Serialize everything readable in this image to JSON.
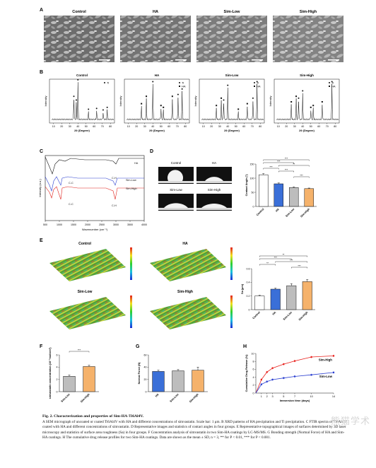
{
  "figure": {
    "caption_title": "Fig. 2. Characterization and properties of Sim-HA-Ti6Al4V.",
    "caption_body": "A SEM micrograph of uncoated or coated Ti6Al4V with HA and different concentrations of simvastatin. Scale bar: 1 μm. B XRD patterns of HA precipitation and Ti precipitation. C FTIR spectra of Ti6Al4V coated with HA and different concentrations of simvastatin. D Representative images and statistics of contact angles in four groups. E Representative topographical images of surfaces determined by 3D laser microscopy and statistics of surface area roughness (Sa) in four groups. F Concentration analysis of simvastatin in two Sim-HA coatings by LC-MS/MS. G Bonding strength (Normal Force) of HA and Sim-HA coatings. H The cumulative drug release profiles for two Sim-HA coatings. Data are shown as the mean ± SD, n = 3, ** for P < 0.01, *** for P < 0.001.",
    "watermark": "熊猫学术"
  },
  "panels": {
    "A": {
      "letter": "A",
      "titles": [
        "Control",
        "HA",
        "Sim-Low",
        "Sim-High"
      ]
    },
    "B": {
      "letter": "B",
      "titles": [
        "Control",
        "HA",
        "Sim-Low",
        "Sim-High"
      ],
      "ylabel": "Intensity",
      "xlabel": "2θ (Degree)",
      "xticks": [
        "10",
        "20",
        "30",
        "40",
        "50",
        "60",
        "70",
        "80"
      ],
      "legend_ti": "Ti",
      "legend_ha": "HA"
    },
    "C": {
      "letter": "C",
      "ylabel": "Intensity (a.u.)",
      "xlabel": "Wavenumber (cm⁻¹)",
      "xticks": [
        "500",
        "1000",
        "1500",
        "2000",
        "2500",
        "3000",
        "3500",
        "4000"
      ],
      "labels": {
        "ha": "HA",
        "low": "Sim-Low",
        "high": "Sim-High",
        "cc1": "C-C",
        "cc2": "C-C",
        "ch1": "C-H",
        "ch2": "C-H"
      }
    },
    "D": {
      "letter": "D",
      "images": [
        "Control",
        "HA",
        "Sim-Low",
        "Sim-High"
      ],
      "ylabel": "Contact Angle (°)"
    },
    "E": {
      "letter": "E",
      "images": [
        "Control",
        "HA",
        "Sim-Low",
        "Sim-High"
      ],
      "ylabel": "Sa (μm)"
    },
    "F": {
      "letter": "F",
      "ylabel": "simvastatin concentration (10⁻²mol/cm²)"
    },
    "G": {
      "letter": "G",
      "ylabel": "Normal Force (N)"
    },
    "H": {
      "letter": "H",
      "ylabel": "Cumulative Drug Release (%)",
      "xlabel": "Immersion time (days)",
      "series_high": "Sim-High",
      "series_low": "Sim-Low"
    }
  },
  "chart_data": [
    {
      "type": "bar",
      "panel": "D",
      "categories": [
        "Control",
        "HA",
        "Sim-Low",
        "Sim-High"
      ],
      "values": [
        112,
        80,
        67,
        63
      ],
      "errors": [
        4,
        3,
        2,
        2
      ],
      "ylim": [
        0,
        150
      ],
      "yticks": [
        0,
        50,
        100,
        150
      ],
      "ylabel": "Contact Angle (°)",
      "significance": [
        "***",
        "***",
        "**",
        "***",
        "***",
        "***"
      ],
      "colors": [
        "#ffffff",
        "#3a6fd8",
        "#bdbdbd",
        "#f5b26b"
      ]
    },
    {
      "type": "bar",
      "panel": "E",
      "categories": [
        "Control",
        "HA",
        "Sim-Low",
        "Sim-High"
      ],
      "values": [
        0.2,
        0.3,
        0.35,
        0.41
      ],
      "errors": [
        0.01,
        0.015,
        0.03,
        0.03
      ],
      "ylim": [
        0,
        0.6
      ],
      "yticks": [
        0,
        0.2,
        0.4,
        0.6
      ],
      "ylabel": "Sa (μm)",
      "significance": [
        "**",
        "***",
        "***",
        "**",
        "***"
      ],
      "colors": [
        "#ffffff",
        "#3a6fd8",
        "#bdbdbd",
        "#f5b26b"
      ]
    },
    {
      "type": "bar",
      "panel": "F",
      "categories": [
        "Sim-Low",
        "Sim-High"
      ],
      "values": [
        2.5,
        4.1
      ],
      "errors": [
        0.2,
        0.2
      ],
      "ylim": [
        0,
        6
      ],
      "yticks": [
        0,
        2,
        4,
        6
      ],
      "ylabel": "simvastatin concentration (10⁻²mol/cm²)",
      "significance": [
        "***"
      ],
      "colors": [
        "#bdbdbd",
        "#f5b26b"
      ]
    },
    {
      "type": "bar",
      "panel": "G",
      "categories": [
        "HA",
        "Sim-Low",
        "Sim-High"
      ],
      "values": [
        33,
        34,
        35
      ],
      "errors": [
        2,
        2,
        5
      ],
      "ylim": [
        0,
        60
      ],
      "yticks": [
        0,
        20,
        40,
        60
      ],
      "ylabel": "Normal Force (N)",
      "colors": [
        "#3a6fd8",
        "#bdbdbd",
        "#f5b26b"
      ]
    },
    {
      "type": "line",
      "panel": "H",
      "x": [
        0,
        1,
        2,
        3,
        5,
        7,
        10,
        14
      ],
      "xticks": [
        1,
        2,
        3,
        5,
        7,
        10,
        14
      ],
      "yticks": [
        0,
        2,
        4,
        6,
        8,
        10
      ],
      "ylim": [
        0,
        10
      ],
      "xlim": [
        0,
        14
      ],
      "xlabel": "Immersion time (days)",
      "ylabel": "Cumulative Drug Release (%)",
      "series": [
        {
          "name": "Sim-High",
          "color": "#e8201c",
          "values": [
            0,
            3.4,
            5.3,
            6.3,
            7.3,
            8.1,
            9.1,
            9.4
          ]
        },
        {
          "name": "Sim-Low",
          "color": "#2a3fd0",
          "values": [
            0,
            2.2,
            2.9,
            3.4,
            3.8,
            4.2,
            4.6,
            5.2
          ]
        }
      ]
    }
  ]
}
